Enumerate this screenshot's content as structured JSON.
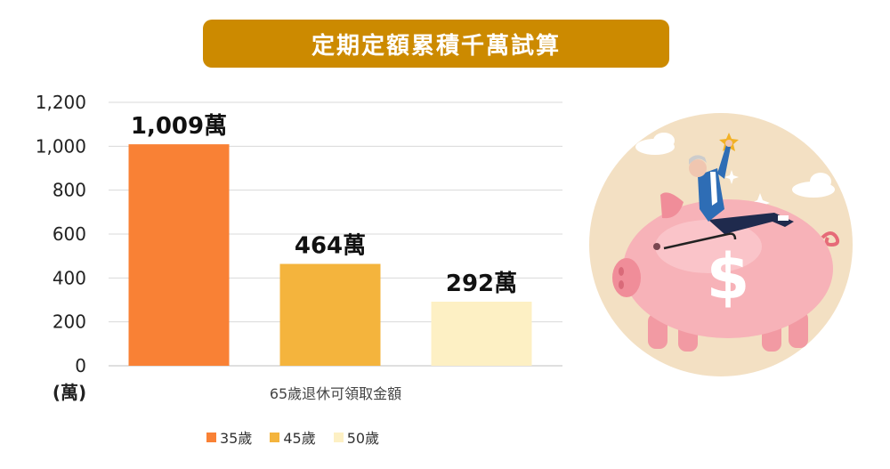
{
  "title": "定期定額累積千萬試算",
  "chart_data": {
    "type": "bar",
    "categories": [
      "35歲",
      "45歲",
      "50歲"
    ],
    "values": [
      1009,
      464,
      292
    ],
    "data_labels": [
      "1,009萬",
      "464萬",
      "292萬"
    ],
    "colors": [
      "#f98135",
      "#f4b43d",
      "#fdf0c4"
    ],
    "xlabel": "65歲退休可領取金額",
    "unit_label": "(萬)",
    "ylim": [
      0,
      1200
    ],
    "yticks": [
      0,
      200,
      400,
      600,
      800,
      1000,
      1200
    ],
    "ytick_labels": [
      "0",
      "200",
      "400",
      "600",
      "800",
      "1,000",
      "1,200"
    ],
    "grid": true,
    "legend": "bottom"
  },
  "legend": {
    "items": [
      {
        "label": "35歲",
        "color": "#f98135"
      },
      {
        "label": "45歲",
        "color": "#f4b43d"
      },
      {
        "label": "50歲",
        "color": "#fdf0c4"
      }
    ]
  },
  "illustration": {
    "icon": "piggy-bank-retirement-icon",
    "symbol": "$"
  }
}
